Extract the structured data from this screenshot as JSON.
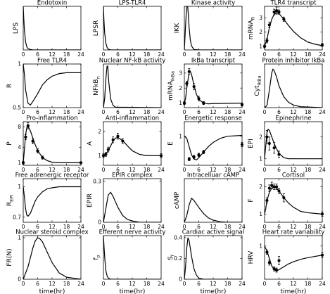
{
  "x_ticks": [
    0,
    6,
    12,
    18,
    24
  ],
  "xlabel": "time(hr)",
  "chart_data": [
    {
      "type": "line",
      "title": "Endotoxin",
      "ylabel": "LPS",
      "ylabel_sub": "",
      "yticks": [],
      "ylim": [
        0,
        1
      ],
      "x": [
        0,
        0.2,
        0.5,
        1,
        1.5,
        2,
        3,
        4,
        6,
        24
      ],
      "y": [
        1,
        0.75,
        0.45,
        0.18,
        0.07,
        0.03,
        0.01,
        0,
        0,
        0
      ],
      "points": []
    },
    {
      "type": "line",
      "title": "LPS-TLR4",
      "ylabel": "LPSR",
      "ylabel_sub": "",
      "yticks": [],
      "ylim": [
        0,
        1
      ],
      "x": [
        0,
        0.2,
        0.5,
        1,
        1.5,
        2,
        3,
        4,
        6,
        24
      ],
      "y": [
        1,
        0.7,
        0.4,
        0.16,
        0.06,
        0.02,
        0,
        0,
        0,
        0
      ],
      "points": []
    },
    {
      "type": "line",
      "title": "Kinase activity",
      "ylabel": "IKK",
      "ylabel_sub": "",
      "yticks": [],
      "ylim": [
        0,
        1
      ],
      "x": [
        0,
        0.5,
        1,
        1.3,
        1.6,
        2,
        2.5,
        3,
        4,
        6,
        24
      ],
      "y": [
        0,
        0.55,
        1.05,
        1.05,
        0.85,
        0.5,
        0.22,
        0.09,
        0.01,
        0,
        0
      ],
      "points": []
    },
    {
      "type": "line",
      "title": "TLR4 transcript",
      "ylabel": "mRNA",
      "ylabel_sub": "R",
      "yticks": [
        "1",
        "2",
        "3"
      ],
      "ylim": [
        0.75,
        3.8
      ],
      "x": [
        0,
        1,
        2,
        3,
        4,
        5,
        6,
        8,
        10,
        12,
        15,
        18,
        21,
        24
      ],
      "y": [
        1,
        1.5,
        2.3,
        2.9,
        3.25,
        3.35,
        3.3,
        2.9,
        2.45,
        2.05,
        1.6,
        1.3,
        1.15,
        1.05
      ],
      "points": [
        {
          "x": 0,
          "y": 1,
          "e": 0.1
        },
        {
          "x": 1,
          "y": 1.4,
          "e": 0.15
        },
        {
          "x": 2,
          "y": 2.5,
          "e": 0.2
        },
        {
          "x": 4,
          "y": 3.4,
          "e": 0.2
        },
        {
          "x": 5,
          "y": 3.5,
          "e": 0.25
        },
        {
          "x": 6,
          "y": 3.4,
          "e": 0.15
        },
        {
          "x": 8,
          "y": 2.9,
          "e": 0.15
        },
        {
          "x": 24,
          "y": 1.1,
          "e": 0.1
        }
      ]
    },
    {
      "type": "line",
      "title": "Free TLR4",
      "ylabel": "R",
      "ylabel_sub": "",
      "yticks": [
        "0.5",
        "1"
      ],
      "ylim": [
        0.5,
        1
      ],
      "x": [
        0,
        0.5,
        1,
        2,
        3,
        4,
        6,
        8,
        10,
        12,
        15,
        18,
        24
      ],
      "y": [
        1,
        0.88,
        0.7,
        0.55,
        0.53,
        0.57,
        0.66,
        0.76,
        0.82,
        0.86,
        0.89,
        0.9,
        0.9
      ],
      "points": []
    },
    {
      "type": "line",
      "title": "Nuclear NF-kB activity",
      "ylabel": "NFkB",
      "ylabel_sub": "n",
      "yticks": [],
      "ylim": [
        0,
        1
      ],
      "x": [
        0,
        0.5,
        1,
        1.5,
        1.8,
        2.2,
        3,
        4,
        5,
        24
      ],
      "y": [
        0,
        0.2,
        0.65,
        0.95,
        0.95,
        0.6,
        0.2,
        0.05,
        0.01,
        0
      ],
      "points": []
    },
    {
      "type": "line",
      "title": "IkBa transcript",
      "ylabel": "mRNA",
      "ylabel_sub": "IkBa",
      "yticks": [
        "1",
        "2",
        "3"
      ],
      "ylim": [
        0.7,
        3.6
      ],
      "x": [
        0,
        0.5,
        1,
        2,
        2.5,
        3,
        4,
        5,
        6,
        8,
        10,
        12,
        24
      ],
      "y": [
        1,
        1.3,
        2,
        3.05,
        3.1,
        2.9,
        2.2,
        1.6,
        1.25,
        1,
        0.95,
        0.97,
        1
      ],
      "points": [
        {
          "x": 0,
          "y": 1,
          "e": 0.1
        },
        {
          "x": 1,
          "y": 2.3,
          "e": 0.15
        },
        {
          "x": 2,
          "y": 3.1,
          "e": 0.2
        },
        {
          "x": 4,
          "y": 2.1,
          "e": 0.2
        },
        {
          "x": 6,
          "y": 1.3,
          "e": 0.15
        },
        {
          "x": 8,
          "y": 1,
          "e": 0.1
        },
        {
          "x": 24,
          "y": 0.9,
          "e": 0.1
        }
      ]
    },
    {
      "type": "line",
      "title": "Protein inhibitor IkBa",
      "ylabel": "Cyt",
      "ylabel_sub": "IkBa",
      "yticks": [],
      "ylim": [
        0,
        1
      ],
      "x": [
        0,
        1,
        2,
        3,
        3.5,
        4,
        5,
        6,
        8,
        10,
        12,
        15,
        24
      ],
      "y": [
        0,
        0.05,
        0.4,
        0.8,
        0.88,
        0.85,
        0.7,
        0.5,
        0.25,
        0.12,
        0.06,
        0.02,
        0
      ],
      "points": []
    },
    {
      "type": "line",
      "title": "Pro-inflammation",
      "ylabel": "P",
      "ylabel_sub": "",
      "yticks": [
        "1",
        "4",
        "8"
      ],
      "ylim": [
        0.5,
        9
      ],
      "x": [
        0,
        0.5,
        1,
        1.5,
        2,
        3,
        4,
        5,
        6,
        8,
        10,
        12,
        15,
        24
      ],
      "y": [
        1,
        3.5,
        6.5,
        7.9,
        8.1,
        7.2,
        5.8,
        4.5,
        3.4,
        2,
        1.4,
        1.1,
        1,
        1
      ],
      "points": [
        {
          "x": 0,
          "y": 1,
          "e": 0.3
        },
        {
          "x": 1,
          "y": 6,
          "e": 0.5
        },
        {
          "x": 2,
          "y": 8.2,
          "e": 0.6
        },
        {
          "x": 4,
          "y": 5.2,
          "e": 0.5
        },
        {
          "x": 6,
          "y": 3.3,
          "e": 0.4
        },
        {
          "x": 8,
          "y": 2,
          "e": 0.3
        },
        {
          "x": 24,
          "y": 1,
          "e": 0.2
        }
      ]
    },
    {
      "type": "line",
      "title": "Anti-inflammation",
      "ylabel": "A",
      "ylabel_sub": "",
      "yticks": [
        "1",
        "2"
      ],
      "ylim": [
        0.6,
        2.4
      ],
      "x": [
        0,
        1,
        2,
        3,
        4,
        5,
        6,
        8,
        10,
        12,
        15,
        18,
        24
      ],
      "y": [
        1,
        1.05,
        1.2,
        1.4,
        1.6,
        1.72,
        1.75,
        1.62,
        1.4,
        1.2,
        1.05,
        1,
        1
      ],
      "points": [
        {
          "x": 0,
          "y": 1,
          "e": 0.08
        },
        {
          "x": 1,
          "y": 1.05,
          "e": 0.08
        },
        {
          "x": 2,
          "y": 1.25,
          "e": 0.1
        },
        {
          "x": 4,
          "y": 1.65,
          "e": 0.12
        },
        {
          "x": 6,
          "y": 1.8,
          "e": 0.12
        },
        {
          "x": 8,
          "y": 1.6,
          "e": 0.1
        },
        {
          "x": 24,
          "y": 1,
          "e": 0.08
        }
      ]
    },
    {
      "type": "line",
      "title": "Energetic response",
      "ylabel": "E",
      "ylabel_sub": "",
      "yticks": [
        "1"
      ],
      "ylim": [
        0.3,
        1.35
      ],
      "x": [
        0,
        1,
        2,
        3,
        4,
        5,
        6,
        8,
        10,
        12,
        15,
        18,
        24
      ],
      "y": [
        1,
        0.95,
        0.75,
        0.55,
        0.45,
        0.43,
        0.48,
        0.62,
        0.75,
        0.85,
        0.95,
        1,
        1.02
      ],
      "points": [
        {
          "x": 2,
          "y": 0.45,
          "e": 0.04
        },
        {
          "x": 4,
          "y": 0.5,
          "e": 0.04
        },
        {
          "x": 6,
          "y": 0.55,
          "e": 0.04
        },
        {
          "x": 8,
          "y": 0.62,
          "e": 0.04
        },
        {
          "x": 24,
          "y": 0.8,
          "e": 0.05
        }
      ]
    },
    {
      "type": "line",
      "title": "Epinephrine",
      "ylabel": "EPI",
      "ylabel_sub": "",
      "yticks": [
        "1",
        "2"
      ],
      "ylim": [
        0.7,
        2.7
      ],
      "x": [
        0,
        0.5,
        1,
        1.5,
        2,
        3,
        4,
        5,
        6,
        8,
        10,
        12,
        24
      ],
      "y": [
        1,
        1.6,
        2.2,
        2.35,
        2.3,
        2,
        1.7,
        1.45,
        1.25,
        1.05,
        1,
        1,
        1
      ],
      "points": [
        {
          "x": 1,
          "y": 2,
          "e": 0.3
        },
        {
          "x": 2,
          "y": 1.7,
          "e": 0.3
        },
        {
          "x": 4,
          "y": 1.5,
          "e": 0.25
        },
        {
          "x": 6,
          "y": 1.2,
          "e": 0.15
        }
      ]
    },
    {
      "type": "line",
      "title": "Free adrenergic receptor",
      "ylabel": "R",
      "ylabel_sub": "EPI",
      "yticks": [
        "0.7",
        "1"
      ],
      "ylim": [
        0.65,
        1.08
      ],
      "x": [
        0,
        0.5,
        1,
        1.5,
        2,
        3,
        4,
        5,
        6,
        8,
        10,
        12,
        15,
        24
      ],
      "y": [
        1,
        0.9,
        0.78,
        0.72,
        0.71,
        0.74,
        0.8,
        0.86,
        0.9,
        0.95,
        0.98,
        0.99,
        1,
        1
      ],
      "points": []
    },
    {
      "type": "line",
      "title": "EPIR complex",
      "ylabel": "EPIR",
      "ylabel_sub": "",
      "yticks": [
        "0",
        "0.3"
      ],
      "ylim": [
        0,
        0.32
      ],
      "x": [
        0,
        1,
        2,
        3,
        4,
        5,
        6,
        8,
        10,
        12,
        15,
        18,
        24
      ],
      "y": [
        0,
        0.1,
        0.2,
        0.22,
        0.19,
        0.15,
        0.11,
        0.05,
        0.02,
        0.01,
        0,
        0,
        0
      ],
      "points": []
    },
    {
      "type": "line",
      "title": "Intracelluar cAMP",
      "ylabel": "cAMP",
      "ylabel_sub": "",
      "yticks": [],
      "ylim": [
        0,
        1
      ],
      "x": [
        0,
        1,
        2,
        3,
        4,
        5,
        6,
        8,
        10,
        12,
        15,
        18,
        24
      ],
      "y": [
        0,
        0.15,
        0.4,
        0.55,
        0.5,
        0.42,
        0.34,
        0.2,
        0.1,
        0.05,
        0.01,
        0,
        0
      ],
      "points": []
    },
    {
      "type": "line",
      "title": "Cortisol",
      "ylabel": "F",
      "ylabel_sub": "",
      "yticks": [
        "1",
        "2"
      ],
      "ylim": [
        0.7,
        2.3
      ],
      "x": [
        0,
        0.5,
        1,
        2,
        3,
        4,
        5,
        6,
        8,
        10,
        12,
        15,
        18,
        24
      ],
      "y": [
        1,
        1.2,
        1.5,
        1.8,
        1.95,
        2,
        1.95,
        1.85,
        1.6,
        1.4,
        1.25,
        1.1,
        1.05,
        1
      ],
      "points": [
        {
          "x": 1,
          "y": 1.5,
          "e": 0.1
        },
        {
          "x": 2,
          "y": 1.95,
          "e": 0.12
        },
        {
          "x": 3,
          "y": 2.05,
          "e": 0.12
        },
        {
          "x": 4,
          "y": 2,
          "e": 0.1
        },
        {
          "x": 5,
          "y": 2,
          "e": 0.1
        },
        {
          "x": 6,
          "y": 1.85,
          "e": 0.1
        },
        {
          "x": 8,
          "y": 1.6,
          "e": 0.15
        },
        {
          "x": 24,
          "y": 1,
          "e": 0.08
        }
      ]
    },
    {
      "type": "line",
      "title": "Nuclear steroid complex",
      "ylabel": "FR(N)",
      "ylabel_sub": "",
      "yticks": [
        "0",
        "1"
      ],
      "ylim": [
        0,
        1.05
      ],
      "x": [
        0,
        2,
        4,
        5,
        6,
        7,
        8,
        10,
        12,
        15,
        18,
        24
      ],
      "y": [
        0,
        0.3,
        0.75,
        0.92,
        1,
        0.97,
        0.9,
        0.65,
        0.4,
        0.15,
        0.05,
        0
      ],
      "points": []
    },
    {
      "type": "line",
      "title": "Efferent nerve activity",
      "ylabel": "f",
      "ylabel_sub": "p",
      "yticks": [],
      "ylim": [
        0,
        1
      ],
      "x": [
        0,
        0.3,
        0.6,
        1,
        1.5,
        2,
        3,
        4,
        6,
        24
      ],
      "y": [
        1,
        0.7,
        0.45,
        0.2,
        0.08,
        0.03,
        0,
        0,
        0,
        0
      ],
      "points": []
    },
    {
      "type": "line",
      "title": "Cardiac active signal",
      "ylabel": "S",
      "ylabel_sub": "f",
      "yticks": [
        "0",
        "0.2",
        "0.4"
      ],
      "ylim": [
        0,
        0.42
      ],
      "x": [
        0,
        0.5,
        1,
        1.5,
        2,
        3,
        4,
        5,
        6,
        8,
        24
      ],
      "y": [
        0,
        0.12,
        0.3,
        0.4,
        0.37,
        0.22,
        0.1,
        0.04,
        0.01,
        0,
        0
      ],
      "points": []
    },
    {
      "type": "line",
      "title": "Heart rate variability",
      "ylabel": "HRV",
      "ylabel_sub": "",
      "yticks": [
        "1"
      ],
      "ylim": [
        0.2,
        1.25
      ],
      "x": [
        0,
        1,
        2,
        3,
        4,
        5,
        6,
        8,
        10,
        12,
        15,
        18,
        24
      ],
      "y": [
        1,
        0.88,
        0.7,
        0.52,
        0.43,
        0.4,
        0.43,
        0.5,
        0.57,
        0.62,
        0.68,
        0.72,
        0.78
      ],
      "points": [
        {
          "x": 1,
          "y": 0.85,
          "e": 0.05
        },
        {
          "x": 2,
          "y": 0.6,
          "e": 0.06
        },
        {
          "x": 4,
          "y": 0.45,
          "e": 0.05
        },
        {
          "x": 5,
          "y": 0.42,
          "e": 0.05
        },
        {
          "x": 6,
          "y": 0.65,
          "e": 0.1
        },
        {
          "x": 24,
          "y": 0.78,
          "e": 0.06
        }
      ]
    }
  ]
}
